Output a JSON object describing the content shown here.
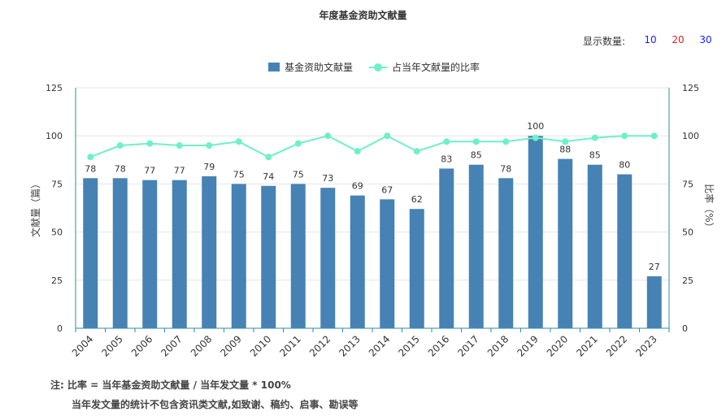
{
  "title": "年度基金资助文献量",
  "display_count": {
    "label": "显示数量:",
    "options": [
      {
        "label": "10",
        "color": "#1a1aff"
      },
      {
        "label": "20",
        "color": "#e02020"
      },
      {
        "label": "30",
        "color": "#1a1aff"
      }
    ]
  },
  "notes": {
    "line1": "注:  比率 = 当年基金资助文献量 / 当年发文量 * 100%",
    "line2": "当年发文量的统计不包含资讯类文献,如致谢、稿约、启事、勘误等"
  },
  "colors": {
    "bar": "#4682b4",
    "line": "#6ef0c8",
    "axis": "#2a8ca0",
    "grid": "#e6e6e6"
  },
  "chart_data": {
    "type": "bar",
    "categories": [
      "2004",
      "2005",
      "2006",
      "2007",
      "2008",
      "2009",
      "2010",
      "2011",
      "2012",
      "2013",
      "2014",
      "2015",
      "2016",
      "2017",
      "2018",
      "2019",
      "2020",
      "2021",
      "2022",
      "2023"
    ],
    "series": [
      {
        "name": "基金资助文献量",
        "type": "bar",
        "axis": "left",
        "values": [
          78,
          78,
          77,
          77,
          79,
          75,
          74,
          75,
          73,
          69,
          67,
          62,
          83,
          85,
          78,
          100,
          88,
          85,
          80,
          27
        ]
      },
      {
        "name": "占当年文献量的比率",
        "type": "line",
        "axis": "right",
        "values": [
          89,
          95,
          96,
          95,
          95,
          97,
          89,
          96,
          100,
          92,
          100,
          92,
          97,
          97,
          97,
          99,
          97,
          99,
          100,
          100
        ]
      }
    ],
    "ylabel": "文献量（篇）",
    "y2label": "比率（%）",
    "ylim": [
      0,
      125
    ],
    "y2lim": [
      0,
      125
    ],
    "yticks": [
      0,
      25,
      50,
      75,
      100,
      125
    ],
    "grid": true,
    "legend": "top-center"
  }
}
